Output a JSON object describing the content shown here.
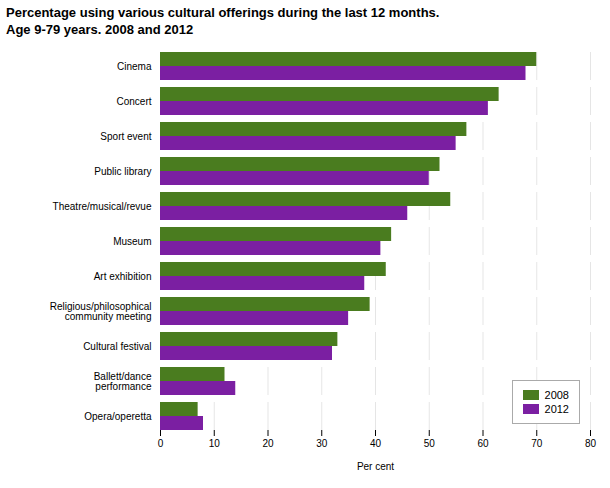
{
  "chart_data": {
    "type": "bar",
    "orientation": "horizontal",
    "title": "Percentage using various cultural offerings during the last 12 months.",
    "subtitle": "Age 9-79 years. 2008 and 2012",
    "categories": [
      "Cinema",
      "Concert",
      "Sport event",
      "Public library",
      "Theatre/musical/revue",
      "Museum",
      "Art exhibition",
      "Religious/philosophical\ncommunity meeting",
      "Cultural festival",
      "Ballett/dance\nperformance",
      "Opera/operetta"
    ],
    "series": [
      {
        "name": "2008",
        "color": "#4a7c1f",
        "values": [
          70,
          63,
          57,
          52,
          54,
          43,
          42,
          39,
          33,
          12,
          7
        ]
      },
      {
        "name": "2012",
        "color": "#7b1fa2",
        "values": [
          68,
          61,
          55,
          50,
          46,
          41,
          38,
          35,
          32,
          14,
          8
        ]
      }
    ],
    "xlabel": "Per cent",
    "xlim": [
      0,
      80
    ],
    "xticks": [
      0,
      10,
      20,
      30,
      40,
      50,
      60,
      70,
      80
    ],
    "grid": true,
    "legend": "lower right"
  }
}
